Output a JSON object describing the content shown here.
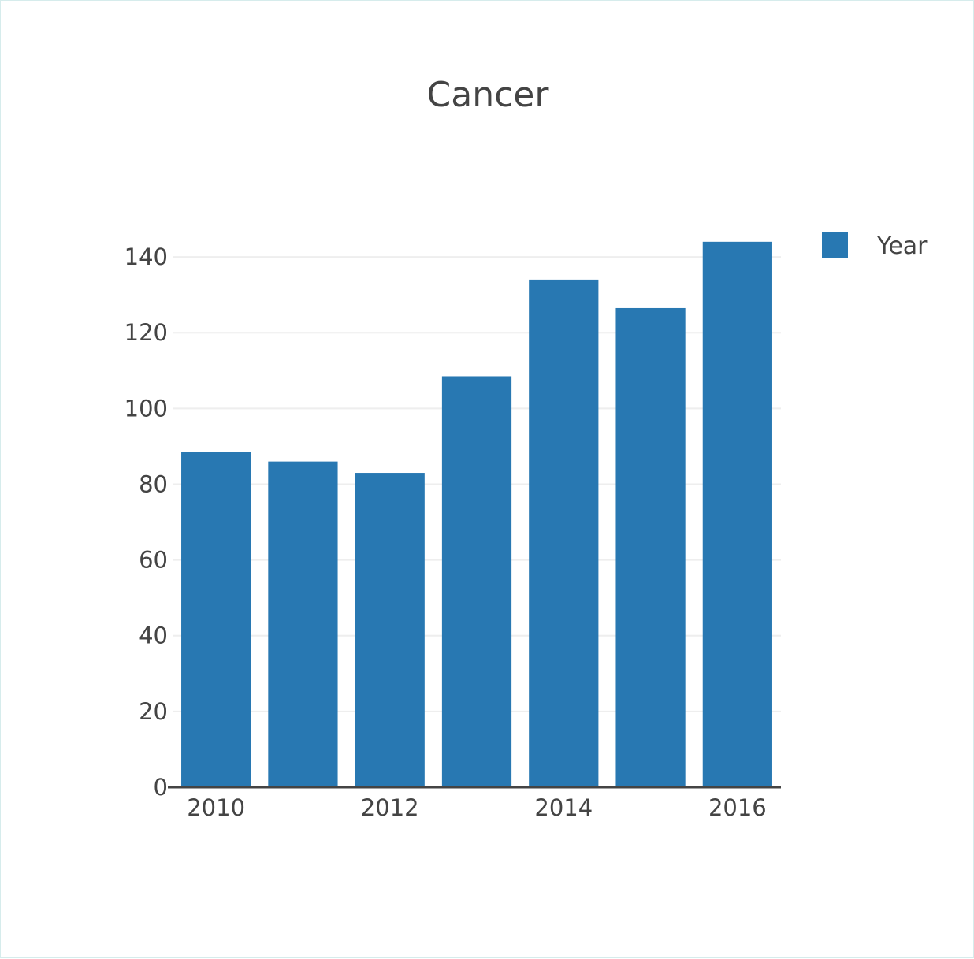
{
  "chart_data": {
    "type": "bar",
    "title": "Cancer",
    "categories": [
      "2010",
      "2011",
      "2012",
      "2013",
      "2014",
      "2015",
      "2016"
    ],
    "series": [
      {
        "name": "Year",
        "color": "#2878b2",
        "values": [
          88.5,
          86,
          83,
          108.5,
          134,
          126.5,
          144
        ]
      }
    ],
    "x_tick_labels": [
      "2010",
      "2012",
      "2014",
      "2016"
    ],
    "y_ticks": [
      0,
      20,
      40,
      60,
      80,
      100,
      120,
      140
    ],
    "ylim": [
      0,
      150
    ],
    "xlabel": "",
    "ylabel": "",
    "grid": true,
    "legend_position": "top-right"
  }
}
